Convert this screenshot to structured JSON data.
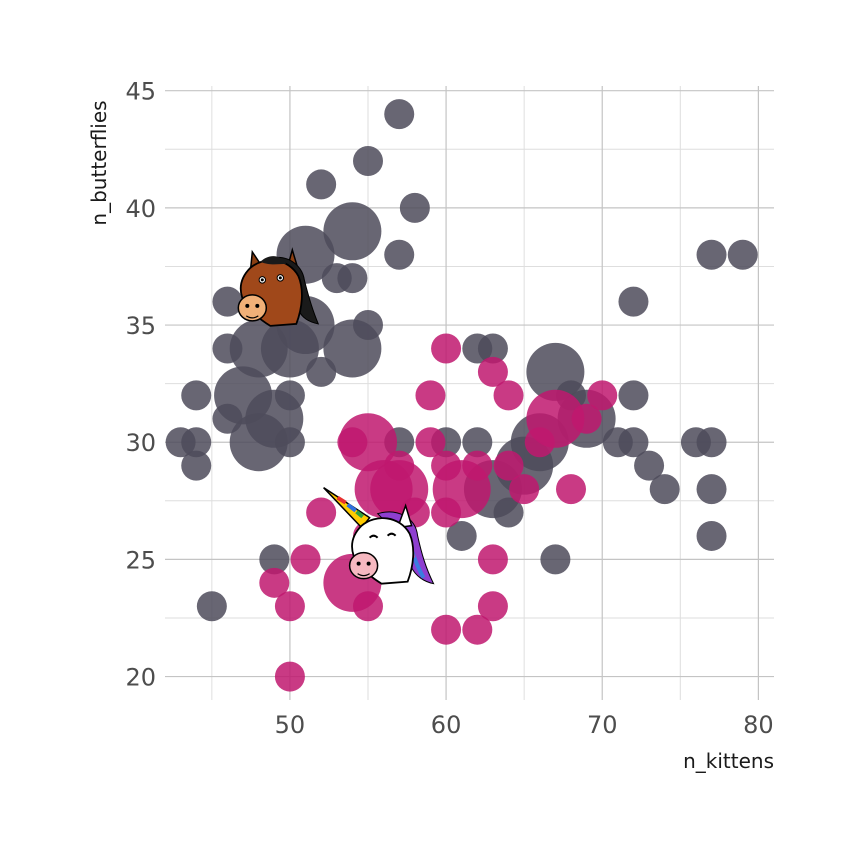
{
  "chart_data": {
    "type": "scatter",
    "title": "",
    "xlabel": "n_kittens",
    "ylabel": "n_butterflies",
    "xlim": [
      42,
      81
    ],
    "ylim": [
      19,
      45.2
    ],
    "x_ticks": [
      50,
      60,
      70,
      80
    ],
    "y_ticks": [
      20,
      25,
      30,
      35,
      40,
      45
    ],
    "grid": true,
    "legend": "none",
    "series": [
      {
        "group": "horse",
        "color": "#4d4b5b",
        "icon": "horse-head-icon",
        "icon_at": [
          49,
          36.5
        ],
        "points": [
          {
            "x": 57,
            "y": 44,
            "size": 1
          },
          {
            "x": 55,
            "y": 42,
            "size": 1
          },
          {
            "x": 52,
            "y": 41,
            "size": 1
          },
          {
            "x": 58,
            "y": 40,
            "size": 1
          },
          {
            "x": 54,
            "y": 39,
            "size": 3
          },
          {
            "x": 51,
            "y": 38,
            "size": 3
          },
          {
            "x": 57,
            "y": 38,
            "size": 1
          },
          {
            "x": 53,
            "y": 37,
            "size": 1
          },
          {
            "x": 54,
            "y": 37,
            "size": 1
          },
          {
            "x": 46,
            "y": 36,
            "size": 1
          },
          {
            "x": 51,
            "y": 35,
            "size": 3
          },
          {
            "x": 55,
            "y": 35,
            "size": 1
          },
          {
            "x": 48,
            "y": 34,
            "size": 3
          },
          {
            "x": 50,
            "y": 34,
            "size": 3
          },
          {
            "x": 46,
            "y": 34,
            "size": 1
          },
          {
            "x": 54,
            "y": 34,
            "size": 3
          },
          {
            "x": 52,
            "y": 33,
            "size": 1
          },
          {
            "x": 47,
            "y": 32,
            "size": 3
          },
          {
            "x": 44,
            "y": 32,
            "size": 1
          },
          {
            "x": 46,
            "y": 31,
            "size": 1
          },
          {
            "x": 50,
            "y": 32,
            "size": 1
          },
          {
            "x": 49,
            "y": 31,
            "size": 3
          },
          {
            "x": 48,
            "y": 30,
            "size": 3
          },
          {
            "x": 50,
            "y": 30,
            "size": 1
          },
          {
            "x": 43,
            "y": 30,
            "size": 1
          },
          {
            "x": 44,
            "y": 30,
            "size": 1
          },
          {
            "x": 44,
            "y": 29,
            "size": 1
          },
          {
            "x": 49,
            "y": 25,
            "size": 1
          },
          {
            "x": 45,
            "y": 23,
            "size": 1
          },
          {
            "x": 62,
            "y": 34,
            "size": 1
          },
          {
            "x": 63,
            "y": 34,
            "size": 1
          },
          {
            "x": 67,
            "y": 33,
            "size": 3
          },
          {
            "x": 68,
            "y": 32,
            "size": 1
          },
          {
            "x": 69,
            "y": 31,
            "size": 3
          },
          {
            "x": 66,
            "y": 30,
            "size": 3
          },
          {
            "x": 65,
            "y": 29,
            "size": 3
          },
          {
            "x": 63,
            "y": 28,
            "size": 3
          },
          {
            "x": 64,
            "y": 27,
            "size": 1
          },
          {
            "x": 61,
            "y": 26,
            "size": 1
          },
          {
            "x": 67,
            "y": 25,
            "size": 1
          },
          {
            "x": 62,
            "y": 30,
            "size": 1
          },
          {
            "x": 60,
            "y": 30,
            "size": 1
          },
          {
            "x": 72,
            "y": 36,
            "size": 1
          },
          {
            "x": 72,
            "y": 32,
            "size": 1
          },
          {
            "x": 71,
            "y": 30,
            "size": 1
          },
          {
            "x": 72,
            "y": 30,
            "size": 1
          },
          {
            "x": 73,
            "y": 29,
            "size": 1
          },
          {
            "x": 74,
            "y": 28,
            "size": 1
          },
          {
            "x": 76,
            "y": 30,
            "size": 1
          },
          {
            "x": 77,
            "y": 30,
            "size": 1
          },
          {
            "x": 77,
            "y": 28,
            "size": 1
          },
          {
            "x": 77,
            "y": 26,
            "size": 1
          },
          {
            "x": 77,
            "y": 38,
            "size": 1
          },
          {
            "x": 79,
            "y": 38,
            "size": 1
          },
          {
            "x": 57,
            "y": 30,
            "size": 1
          }
        ]
      },
      {
        "group": "unicorn",
        "color": "#c0176e",
        "icon": "unicorn-head-icon",
        "icon_at": [
          56,
          25.5
        ],
        "points": [
          {
            "x": 60,
            "y": 34,
            "size": 1
          },
          {
            "x": 59,
            "y": 32,
            "size": 1
          },
          {
            "x": 63,
            "y": 33,
            "size": 1
          },
          {
            "x": 64,
            "y": 32,
            "size": 1
          },
          {
            "x": 55,
            "y": 30,
            "size": 3
          },
          {
            "x": 54,
            "y": 30,
            "size": 1
          },
          {
            "x": 57,
            "y": 29,
            "size": 1
          },
          {
            "x": 56,
            "y": 28,
            "size": 3
          },
          {
            "x": 57,
            "y": 28,
            "size": 3
          },
          {
            "x": 59,
            "y": 30,
            "size": 1
          },
          {
            "x": 60,
            "y": 29,
            "size": 1
          },
          {
            "x": 61,
            "y": 28,
            "size": 3
          },
          {
            "x": 62,
            "y": 29,
            "size": 1
          },
          {
            "x": 64,
            "y": 29,
            "size": 1
          },
          {
            "x": 66,
            "y": 30,
            "size": 1
          },
          {
            "x": 67,
            "y": 31,
            "size": 3
          },
          {
            "x": 69,
            "y": 31,
            "size": 1
          },
          {
            "x": 70,
            "y": 32,
            "size": 1
          },
          {
            "x": 68,
            "y": 28,
            "size": 1
          },
          {
            "x": 65,
            "y": 28,
            "size": 1
          },
          {
            "x": 60,
            "y": 27,
            "size": 1
          },
          {
            "x": 52,
            "y": 27,
            "size": 1
          },
          {
            "x": 55,
            "y": 26,
            "size": 1
          },
          {
            "x": 51,
            "y": 25,
            "size": 1
          },
          {
            "x": 54,
            "y": 24,
            "size": 3
          },
          {
            "x": 49,
            "y": 24,
            "size": 1
          },
          {
            "x": 55,
            "y": 23,
            "size": 1
          },
          {
            "x": 50,
            "y": 23,
            "size": 1
          },
          {
            "x": 60,
            "y": 22,
            "size": 1
          },
          {
            "x": 62,
            "y": 22,
            "size": 1
          },
          {
            "x": 63,
            "y": 23,
            "size": 1
          },
          {
            "x": 63,
            "y": 25,
            "size": 1
          },
          {
            "x": 50,
            "y": 20,
            "size": 1
          },
          {
            "x": 58,
            "y": 27,
            "size": 1
          }
        ]
      }
    ]
  }
}
